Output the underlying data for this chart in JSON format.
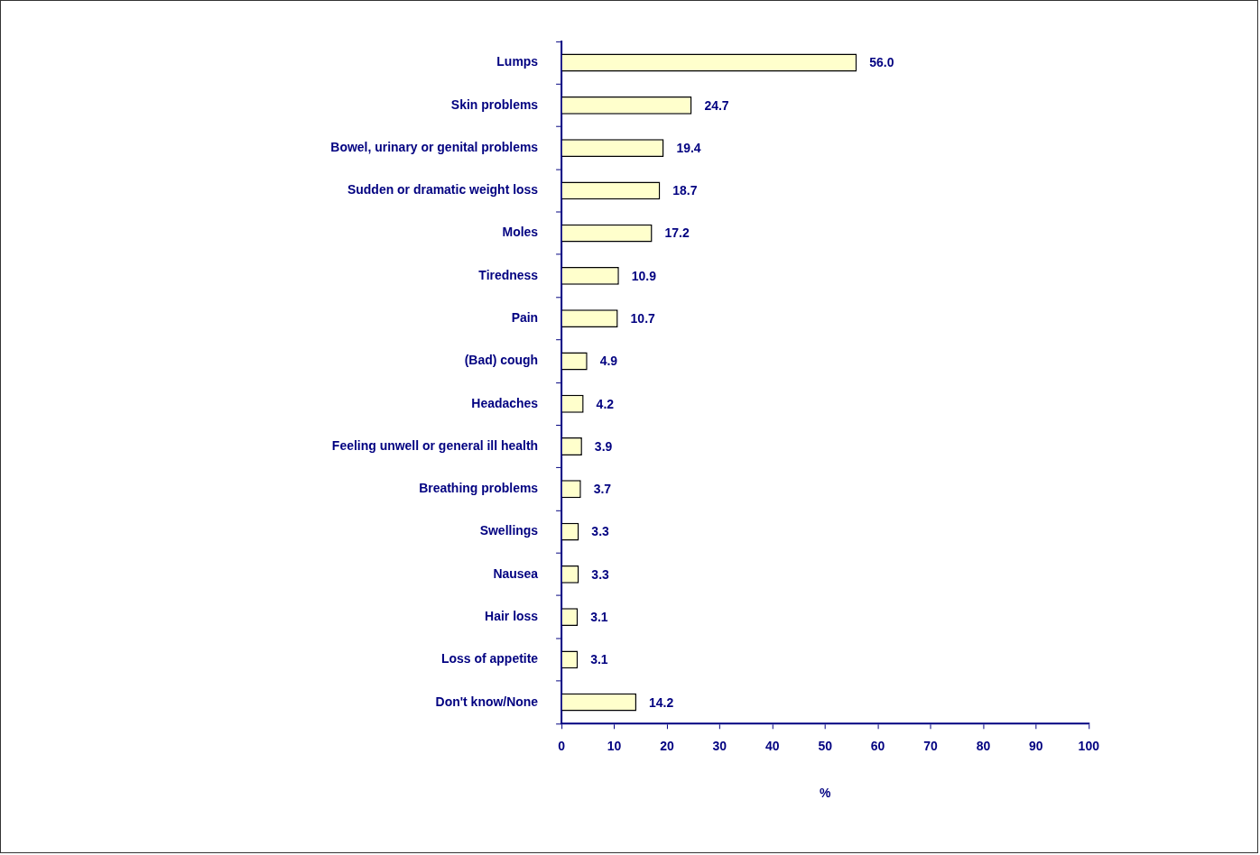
{
  "chart_data": {
    "type": "bar",
    "orientation": "horizontal",
    "xlabel": "%",
    "categories": [
      "Lumps",
      "Skin problems",
      "Bowel, urinary or genital problems",
      "Sudden or dramatic weight loss",
      "Moles",
      "Tiredness",
      "Pain",
      "(Bad) cough",
      "Headaches",
      "Feeling unwell or general ill health",
      "Breathing problems",
      "Swellings",
      "Nausea",
      "Hair loss",
      "Loss of appetite",
      "Don't know/None"
    ],
    "values": [
      56.0,
      24.7,
      19.4,
      18.7,
      17.2,
      10.9,
      10.7,
      4.9,
      4.2,
      3.9,
      3.7,
      3.3,
      3.3,
      3.1,
      3.1,
      14.2
    ],
    "value_labels": [
      "56.0",
      "24.7",
      "19.4",
      "18.7",
      "17.2",
      "10.9",
      "10.7",
      "4.9",
      "4.2",
      "3.9",
      "3.7",
      "3.3",
      "3.3",
      "3.1",
      "3.1",
      "14.2"
    ],
    "color": "#ffffcc",
    "xlim": [
      0,
      100
    ],
    "xticks": [
      0,
      10,
      20,
      30,
      40,
      50,
      60,
      70,
      80,
      90,
      100
    ],
    "grid": false,
    "legend": false
  }
}
